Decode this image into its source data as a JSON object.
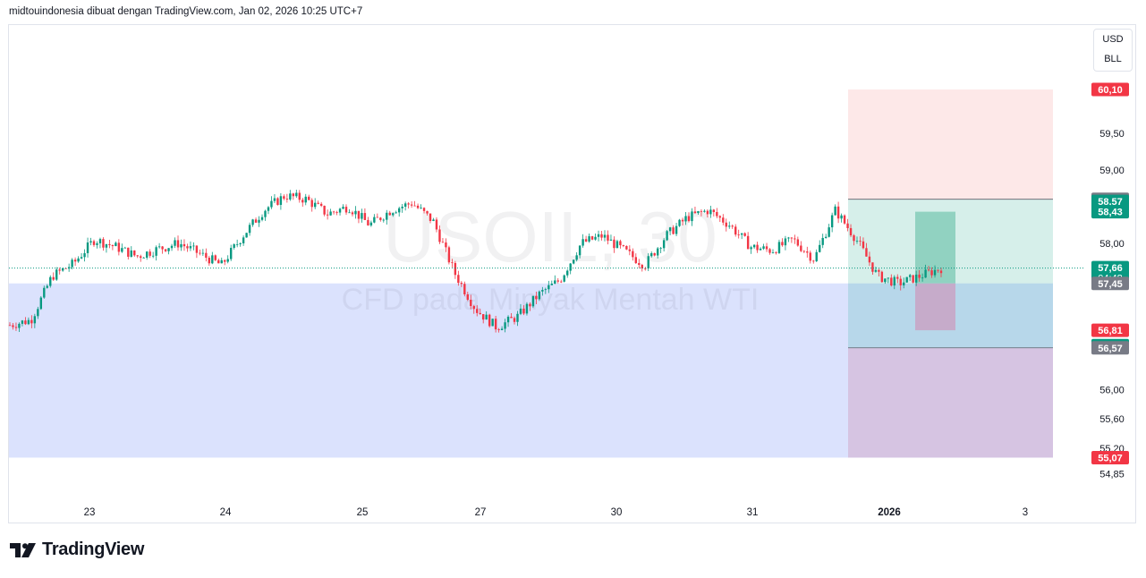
{
  "header": {
    "attribution": "midtouindonesia dibuat dengan TradingView.com, Jan 02, 2026 10:25 UTC+7"
  },
  "watermark": {
    "symbol": "USOIL, 30",
    "description": "CFD pada Minyak Mentah WTI"
  },
  "currency_badge": {
    "currency": "USD",
    "unit": "BLL"
  },
  "brand": {
    "name": "TradingView"
  },
  "colors": {
    "up": "#089981",
    "down": "#f23645",
    "zone_blue": "#dbe2fd",
    "stop_zone": "#fde8e8",
    "target_zone": "#d2ede8",
    "grey_label": "#787b86"
  },
  "chart_data": {
    "type": "candlestick",
    "symbol": "USOIL",
    "timeframe": "30",
    "x_tick_labels": [
      "23",
      "24",
      "25",
      "27",
      "30",
      "31",
      "2026",
      "3"
    ],
    "y_tick_labels": [
      "59,50",
      "59,00",
      "58,00",
      "56,00",
      "55,60",
      "55,20",
      "54,85"
    ],
    "y_range": [
      54.75,
      60.4
    ],
    "close_path": [
      [
        "23",
        56.88
      ],
      [
        "23",
        56.95
      ],
      [
        "23",
        57.55
      ],
      [
        "23",
        57.72
      ],
      [
        "23",
        58.05
      ],
      [
        "23",
        57.95
      ],
      [
        "24",
        57.82
      ],
      [
        "24",
        57.92
      ],
      [
        "24",
        58.0
      ],
      [
        "24",
        57.85
      ],
      [
        "24",
        57.7
      ],
      [
        "24",
        58.1
      ],
      [
        "24",
        58.45
      ],
      [
        "25",
        58.65
      ],
      [
        "25",
        58.6
      ],
      [
        "25",
        58.4
      ],
      [
        "25",
        58.5
      ],
      [
        "25",
        58.25
      ],
      [
        "25",
        58.45
      ],
      [
        "25",
        58.55
      ],
      [
        "27",
        58.3
      ],
      [
        "27",
        57.6
      ],
      [
        "27",
        57.1
      ],
      [
        "27",
        56.85
      ],
      [
        "27",
        57.0
      ],
      [
        "27",
        57.3
      ],
      [
        "30",
        57.5
      ],
      [
        "30",
        58.0
      ],
      [
        "30",
        58.1
      ],
      [
        "30",
        57.9
      ],
      [
        "30",
        57.7
      ],
      [
        "30",
        58.1
      ],
      [
        "31",
        58.35
      ],
      [
        "31",
        58.45
      ],
      [
        "31",
        58.25
      ],
      [
        "31",
        57.95
      ],
      [
        "31",
        57.9
      ],
      [
        "31",
        58.05
      ],
      [
        "31",
        57.78
      ],
      [
        "2026",
        58.45
      ],
      [
        "2026",
        58.05
      ],
      [
        "2026",
        57.55
      ],
      [
        "2026",
        57.45
      ],
      [
        "2026",
        57.55
      ],
      [
        "2026",
        57.66
      ]
    ],
    "price_labels": [
      {
        "value": "60,10",
        "kind": "stop"
      },
      {
        "value": "58,60",
        "kind": "level"
      },
      {
        "value": "58,57",
        "kind": "target"
      },
      {
        "value": "58,43",
        "kind": "target"
      },
      {
        "value": "57,66",
        "kind": "last",
        "countdown": "04:48"
      },
      {
        "value": "57,45",
        "kind": "level"
      },
      {
        "value": "56,81",
        "kind": "stop"
      },
      {
        "value": "56,60",
        "kind": "target"
      },
      {
        "value": "56,57",
        "kind": "level"
      },
      {
        "value": "55,07",
        "kind": "stop"
      }
    ],
    "zones": [
      {
        "kind": "support",
        "from": 55.07,
        "to": 57.45
      },
      {
        "kind": "stop",
        "from": 58.6,
        "to": 60.1
      },
      {
        "kind": "target",
        "from": 56.57,
        "to": 58.6
      },
      {
        "kind": "risk",
        "from": 55.07,
        "to": 56.57
      }
    ],
    "position_box": {
      "upper": 58.43,
      "entry": 57.45,
      "lower": 56.81
    },
    "last_price": 57.66,
    "grid": false,
    "legend": "none"
  }
}
